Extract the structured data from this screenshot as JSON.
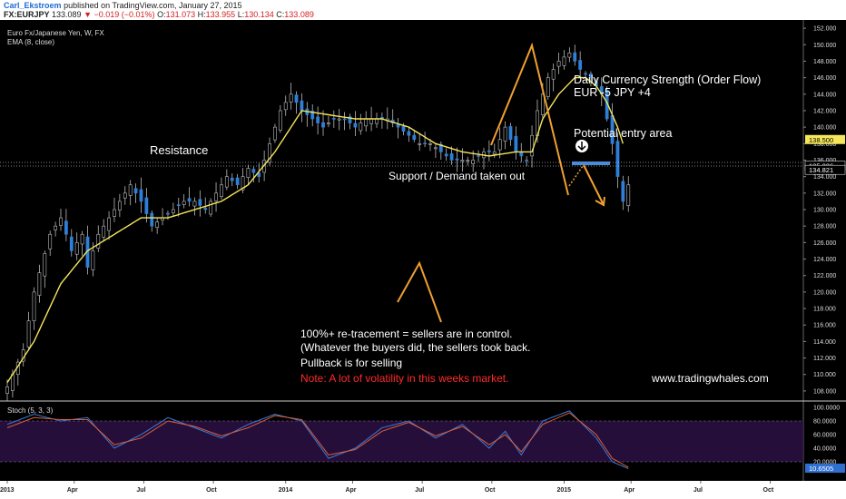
{
  "header": {
    "author": "Carl_Ekstroem",
    "published": "published on TradingView.com, January 27, 2015",
    "symbol": "FX:EURJPY",
    "last": "133.089",
    "change": "▼ −0.019 (−0.01%)",
    "open_label": "O:",
    "open": "131.073",
    "high_label": "H:",
    "high": "133.955",
    "low_label": "L:",
    "low": "130.134",
    "close_label": "C:",
    "close": "133.089"
  },
  "chart_data": [
    {
      "type": "candlestick",
      "title": "Euro Fx/Japanese Yen, W, FX",
      "indicator": "EMA (8, close)",
      "ylim": [
        107,
        153
      ],
      "y_ticks": [
        "108.000",
        "110.000",
        "112.000",
        "114.000",
        "116.000",
        "118.000",
        "120.000",
        "122.000",
        "124.000",
        "126.000",
        "128.000",
        "130.000",
        "132.000",
        "134.000",
        "136.000",
        "138.000",
        "140.000",
        "142.000",
        "144.000",
        "146.000",
        "148.000",
        "150.000",
        "152.000"
      ],
      "x_ticks": [
        "2013",
        "Apr",
        "Jul",
        "Oct",
        "2014",
        "Apr",
        "Jul",
        "Oct",
        "2015",
        "Apr",
        "Jul",
        "Oct"
      ],
      "price_labels": {
        "current": "138.500",
        "line1": "135.336",
        "line2": "134.821"
      },
      "series": [
        {
          "name": "EURJPY",
          "path": [
            [
              0,
              108.5
            ],
            [
              3,
              113
            ],
            [
              5,
              120
            ],
            [
              8,
              127
            ],
            [
              10,
              129
            ],
            [
              12,
              125
            ],
            [
              14,
              127
            ],
            [
              15,
              123
            ],
            [
              17,
              127
            ],
            [
              19,
              129
            ],
            [
              21,
              131
            ],
            [
              23,
              133
            ],
            [
              25,
              131
            ],
            [
              27,
              128
            ],
            [
              29,
              129
            ],
            [
              31,
              130
            ],
            [
              33,
              131
            ],
            [
              35,
              131
            ],
            [
              37,
              130
            ],
            [
              39,
              132
            ],
            [
              41,
              134
            ],
            [
              43,
              133
            ],
            [
              45,
              135
            ],
            [
              47,
              134
            ],
            [
              49,
              138
            ],
            [
              51,
              142
            ],
            [
              53,
              144
            ],
            [
              55,
              142
            ],
            [
              57,
              141
            ],
            [
              59,
              140
            ],
            [
              61,
              141
            ],
            [
              63,
              141
            ],
            [
              65,
              140
            ],
            [
              67,
              141
            ],
            [
              69,
              141
            ],
            [
              71,
              141
            ],
            [
              73,
              140
            ],
            [
              75,
              139
            ],
            [
              77,
              138
            ],
            [
              79,
              138
            ],
            [
              81,
              137
            ],
            [
              83,
              136
            ],
            [
              85,
              136
            ],
            [
              87,
              136
            ],
            [
              89,
              137
            ],
            [
              91,
              137
            ],
            [
              93,
              140
            ],
            [
              95,
              137
            ],
            [
              97,
              136
            ],
            [
              99,
              142
            ],
            [
              101,
              146
            ],
            [
              103,
              148
            ],
            [
              105,
              149
            ],
            [
              107,
              147
            ],
            [
              109,
              146
            ],
            [
              111,
              144
            ],
            [
              112,
              141
            ],
            [
              113,
              138
            ],
            [
              114,
              134
            ],
            [
              115,
              131
            ],
            [
              116,
              133
            ]
          ]
        },
        {
          "name": "EMA (8, close)",
          "path": [
            [
              0,
              109
            ],
            [
              5,
              114
            ],
            [
              10,
              121
            ],
            [
              15,
              125
            ],
            [
              20,
              127
            ],
            [
              25,
              129
            ],
            [
              30,
              129
            ],
            [
              35,
              130
            ],
            [
              40,
              131
            ],
            [
              45,
              133
            ],
            [
              50,
              137
            ],
            [
              55,
              142
            ],
            [
              60,
              141.5
            ],
            [
              65,
              141
            ],
            [
              70,
              141
            ],
            [
              75,
              140
            ],
            [
              80,
              138
            ],
            [
              85,
              137
            ],
            [
              90,
              136.5
            ],
            [
              95,
              137
            ],
            [
              98,
              137
            ],
            [
              100,
              141
            ],
            [
              103,
              144
            ],
            [
              106,
              146
            ],
            [
              108,
              146
            ],
            [
              110,
              145
            ],
            [
              112,
              143
            ],
            [
              114,
              140
            ],
            [
              115,
              138
            ]
          ]
        }
      ]
    },
    {
      "type": "line",
      "title": "Stoch (5, 3, 3)",
      "ylim": [
        0,
        100
      ],
      "y_ticks": [
        "100.0000",
        "80.0000",
        "60.0000",
        "40.0000",
        "20.0000"
      ],
      "current_label": "10.6505",
      "series": [
        {
          "name": "%K",
          "path": [
            [
              0,
              75
            ],
            [
              5,
              90
            ],
            [
              10,
              80
            ],
            [
              15,
              85
            ],
            [
              20,
              40
            ],
            [
              25,
              60
            ],
            [
              30,
              85
            ],
            [
              35,
              70
            ],
            [
              40,
              55
            ],
            [
              45,
              75
            ],
            [
              50,
              90
            ],
            [
              55,
              80
            ],
            [
              60,
              25
            ],
            [
              65,
              40
            ],
            [
              70,
              70
            ],
            [
              75,
              80
            ],
            [
              80,
              55
            ],
            [
              85,
              75
            ],
            [
              90,
              40
            ],
            [
              93,
              65
            ],
            [
              96,
              30
            ],
            [
              100,
              80
            ],
            [
              105,
              95
            ],
            [
              110,
              55
            ],
            [
              113,
              20
            ],
            [
              116,
              10
            ]
          ]
        },
        {
          "name": "%D",
          "path": [
            [
              0,
              70
            ],
            [
              5,
              85
            ],
            [
              10,
              82
            ],
            [
              15,
              82
            ],
            [
              20,
              45
            ],
            [
              25,
              55
            ],
            [
              30,
              80
            ],
            [
              35,
              72
            ],
            [
              40,
              58
            ],
            [
              45,
              70
            ],
            [
              50,
              88
            ],
            [
              55,
              82
            ],
            [
              60,
              30
            ],
            [
              65,
              38
            ],
            [
              70,
              65
            ],
            [
              75,
              78
            ],
            [
              80,
              58
            ],
            [
              85,
              72
            ],
            [
              90,
              45
            ],
            [
              93,
              60
            ],
            [
              96,
              35
            ],
            [
              100,
              75
            ],
            [
              105,
              92
            ],
            [
              110,
              60
            ],
            [
              113,
              25
            ],
            [
              116,
              12
            ]
          ]
        }
      ]
    }
  ],
  "annotations": {
    "resistance": "Resistance",
    "support": "Support / Demand taken out",
    "strength_line1": "Daily Currency Strength (Order Flow)",
    "strength_line2": "EUR -5    JPY +4",
    "entry": "Potential entry area",
    "retrace_line1": "100%+ re-tracement =  sellers are in control.",
    "retrace_line2": "(Whatever the buyers did, the sellers took back.",
    "pullback": "Pullback is for selling",
    "note": "Note: A lot of volatility in this weeks market.",
    "site": "www.tradingwhales.com"
  },
  "colors": {
    "bull": "#2f7fd8",
    "bear": "#2f7fd8",
    "ema": "#f5e65a",
    "orange": "#f0a030",
    "stoch_k": "#3a7bd5",
    "stoch_d": "#d8603a",
    "note": "#ff2a2a"
  }
}
